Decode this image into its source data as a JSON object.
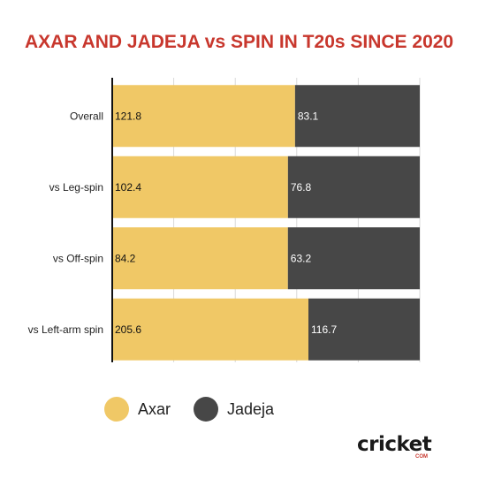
{
  "chart_data": {
    "type": "bar",
    "orientation": "horizontal",
    "stacked": true,
    "title": "AXAR AND JADEJA vs SPIN IN T20s SINCE 2020",
    "categories": [
      "Overall",
      "vs Leg-spin",
      "vs Off-spin",
      "vs Left-arm spin"
    ],
    "series": [
      {
        "name": "Axar",
        "color": "#f0c866",
        "values": [
          121.8,
          102.4,
          84.2,
          205.6
        ]
      },
      {
        "name": "Jadeja",
        "color": "#474747",
        "values": [
          83.1,
          76.8,
          63.2,
          116.7
        ]
      }
    ],
    "legend_position": "bottom",
    "grid": true
  },
  "brand": {
    "logo_text": "cricket",
    "logo_sub": "COM",
    "accent": "#c8372d"
  }
}
